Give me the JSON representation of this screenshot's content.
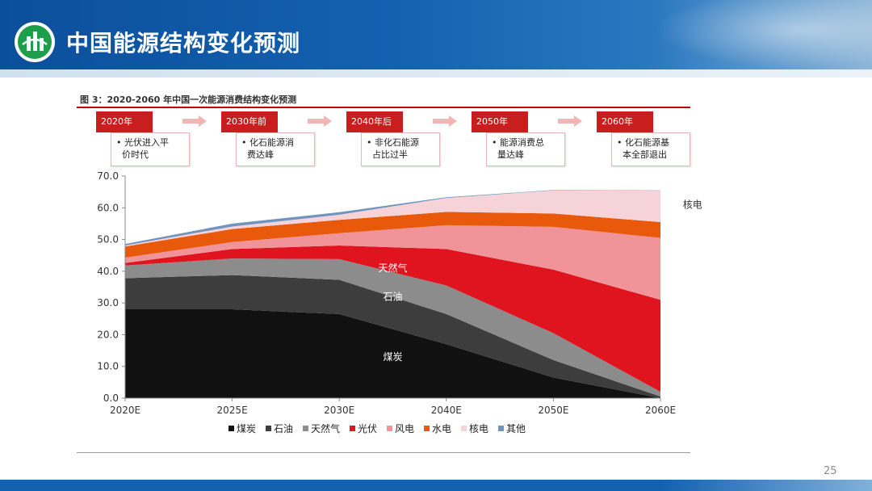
{
  "slide": {
    "title": "中国能源结构变化预测",
    "page_number": "25"
  },
  "figure": {
    "caption": "图 3：2020-2060 年中国一次能源消费结构变化预测"
  },
  "timeline": [
    {
      "year": "2020年",
      "text": "• 光伏进入平\n  价时代"
    },
    {
      "year": "2030年前",
      "text": "• 化石能源消\n  费达峰"
    },
    {
      "year": "2040年后",
      "text": "• 非化石能源\n  占比过半"
    },
    {
      "year": "2050年",
      "text": "• 能源消费总\n  量达峰"
    },
    {
      "year": "2060年",
      "text": "• 化石能源基\n  本全部退出"
    }
  ],
  "chart_data": {
    "type": "area",
    "stacked": true,
    "x": [
      "2020E",
      "2025E",
      "2030E",
      "2040E",
      "2050E",
      "2060E"
    ],
    "ylim": [
      0,
      70
    ],
    "yticks": [
      "0.0",
      "10.0",
      "20.0",
      "30.0",
      "40.0",
      "50.0",
      "60.0",
      "70.0"
    ],
    "series": [
      {
        "name": "煤炭",
        "color": "#111111",
        "values": [
          28.0,
          28.0,
          26.5,
          17.0,
          6.5,
          0.0
        ],
        "label_at": [
          2.5,
          13
        ]
      },
      {
        "name": "石油",
        "color": "#3d3d3d",
        "values": [
          9.8,
          10.8,
          10.8,
          9.5,
          5.5,
          0.5
        ],
        "label_at": [
          2.5,
          32
        ]
      },
      {
        "name": "天然气",
        "color": "#8c8c8c",
        "values": [
          4.0,
          5.2,
          6.5,
          9.0,
          8.5,
          1.5
        ],
        "label_at": [
          2.5,
          41
        ]
      },
      {
        "name": "光伏",
        "color": "#e0141e",
        "values": [
          0.8,
          3.0,
          4.3,
          11.5,
          20.0,
          29.0
        ],
        "label_at": [
          5.3,
          26
        ]
      },
      {
        "name": "风电",
        "color": "#f0949a",
        "values": [
          1.7,
          2.2,
          3.9,
          7.5,
          13.5,
          19.5
        ],
        "label_at": [
          5.3,
          44
        ]
      },
      {
        "name": "水电",
        "color": "#e8590c",
        "values": [
          3.5,
          4.1,
          4.2,
          4.2,
          4.2,
          5.0
        ],
        "label_at": [
          5.3,
          53
        ]
      },
      {
        "name": "核电",
        "color": "#f6d3d8",
        "values": [
          0.3,
          0.8,
          1.6,
          4.4,
          7.3,
          9.9
        ],
        "label_at": [
          5.3,
          61
        ]
      },
      {
        "name": "其他",
        "color": "#6f94bd",
        "values": [
          0.5,
          0.9,
          0.8,
          0.2,
          0.1,
          0.1
        ],
        "label_at": null
      }
    ],
    "legend": "bottom",
    "grid": false
  }
}
